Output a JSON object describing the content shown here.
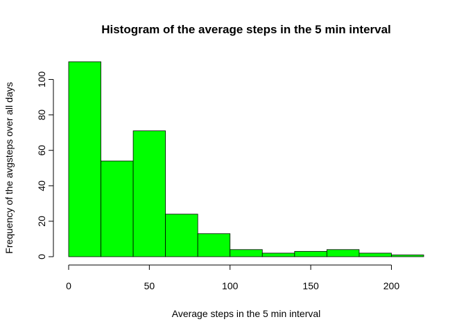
{
  "chart_data": {
    "type": "bar",
    "title": "Histogram of the average steps in the 5 min interval",
    "xlabel": "Average steps in the 5 min interval",
    "ylabel": "Frequency of the avgsteps over all days",
    "bin_edges": [
      0,
      20,
      40,
      60,
      80,
      100,
      120,
      140,
      160,
      180,
      200,
      220
    ],
    "values": [
      110,
      54,
      71,
      24,
      13,
      4,
      2,
      3,
      4,
      2,
      1
    ],
    "xlim": [
      0,
      220
    ],
    "ylim": [
      0,
      110
    ],
    "x_ticks": [
      0,
      50,
      100,
      150,
      200
    ],
    "y_ticks": [
      0,
      20,
      40,
      60,
      80,
      100
    ],
    "bar_color": "#00ff00",
    "grid": false
  }
}
